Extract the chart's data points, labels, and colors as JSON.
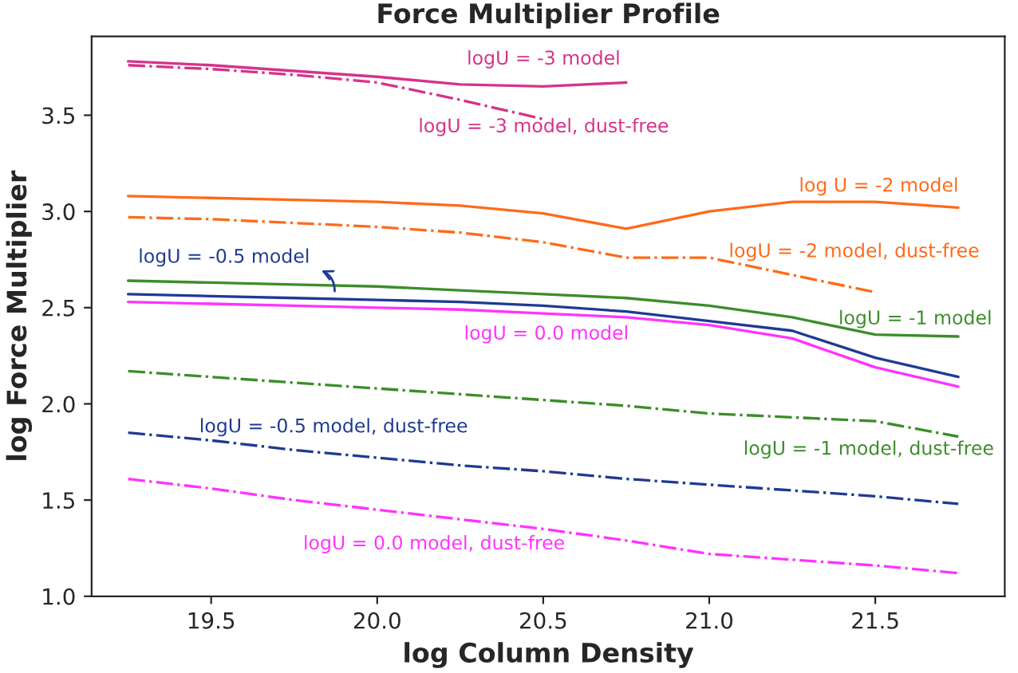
{
  "chart_data": {
    "type": "line",
    "title": "Force Multiplier Profile",
    "xlabel": "log Column Density",
    "ylabel": "log Force Multiplier",
    "x": [
      19.25,
      19.5,
      19.75,
      20.0,
      20.25,
      20.5,
      20.75,
      21.0,
      21.25,
      21.5,
      21.75
    ],
    "series": [
      {
        "name": "logU = -3 model",
        "color": "#d6338a",
        "line_style": "solid",
        "x": [
          19.25,
          19.5,
          19.75,
          20.0,
          20.25,
          20.5,
          20.75
        ],
        "values": [
          3.78,
          3.76,
          3.73,
          3.7,
          3.66,
          3.65,
          3.67
        ]
      },
      {
        "name": "logU = -3 model, dust-free",
        "color": "#d6338a",
        "line_style": "dashdot",
        "x": [
          19.25,
          19.5,
          19.75,
          20.0,
          20.25,
          20.5
        ],
        "values": [
          3.76,
          3.74,
          3.71,
          3.67,
          3.58,
          3.48
        ]
      },
      {
        "name": "log U = -2 model",
        "color": "#ff6a1a",
        "line_style": "solid",
        "values": [
          3.08,
          3.07,
          3.06,
          3.05,
          3.03,
          2.99,
          2.91,
          3.0,
          3.05,
          3.05,
          3.02
        ]
      },
      {
        "name": "logU = -2 model, dust-free",
        "color": "#ff6a1a",
        "line_style": "dashdot",
        "x": [
          19.25,
          19.5,
          19.75,
          20.0,
          20.25,
          20.5,
          20.75,
          21.0,
          21.25,
          21.5
        ],
        "values": [
          2.97,
          2.96,
          2.94,
          2.92,
          2.89,
          2.84,
          2.76,
          2.76,
          2.67,
          2.58
        ]
      },
      {
        "name": "logU = -0.5 model",
        "color": "#1f3a93",
        "line_style": "solid",
        "values": [
          2.57,
          2.56,
          2.55,
          2.54,
          2.53,
          2.51,
          2.48,
          2.43,
          2.38,
          2.24,
          2.14
        ]
      },
      {
        "name": "logU = -1 model",
        "color": "#3c8d2a",
        "line_style": "solid",
        "values": [
          2.64,
          2.63,
          2.62,
          2.61,
          2.59,
          2.57,
          2.55,
          2.51,
          2.45,
          2.36,
          2.35
        ]
      },
      {
        "name": "logU = 0.0 model",
        "color": "#ff33ff",
        "line_style": "solid",
        "values": [
          2.53,
          2.52,
          2.51,
          2.5,
          2.49,
          2.47,
          2.45,
          2.41,
          2.34,
          2.19,
          2.09
        ]
      },
      {
        "name": "logU = -1 model, dust-free",
        "color": "#3c8d2a",
        "line_style": "dashdot",
        "values": [
          2.17,
          2.14,
          2.11,
          2.08,
          2.05,
          2.02,
          1.99,
          1.95,
          1.93,
          1.91,
          1.83
        ]
      },
      {
        "name": "logU = -0.5 model, dust-free",
        "color": "#1f3a93",
        "line_style": "dashdot",
        "values": [
          1.85,
          1.81,
          1.76,
          1.72,
          1.68,
          1.65,
          1.61,
          1.58,
          1.55,
          1.52,
          1.48
        ]
      },
      {
        "name": "logU = 0.0 model, dust-free",
        "color": "#ff33ff",
        "line_style": "dashdot",
        "values": [
          1.61,
          1.56,
          1.5,
          1.45,
          1.4,
          1.35,
          1.29,
          1.22,
          1.19,
          1.16,
          1.12
        ]
      }
    ],
    "xlim": [
      19.14,
      21.89
    ],
    "ylim": [
      1.0,
      3.91
    ],
    "xticks": [
      19.5,
      {
        "value": 20,
        "label": "20.0"
      },
      20.5,
      {
        "value": 21,
        "label": "21.0"
      },
      21.5
    ],
    "yticks": [
      {
        "value": 1,
        "label": "1.0"
      },
      1.5,
      {
        "value": 2,
        "label": "2.0"
      },
      2.5,
      {
        "value": 3,
        "label": "3.0"
      },
      3.5
    ],
    "grid": false,
    "legend": false
  }
}
